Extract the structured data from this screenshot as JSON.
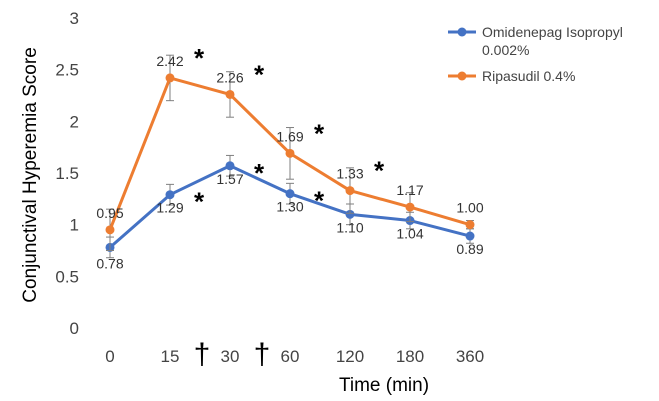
{
  "chart_data": {
    "type": "line",
    "title": "",
    "xlabel": "Time (min)",
    "ylabel": "Conjunctival Hyperemia Score",
    "categories": [
      "0",
      "15",
      "30",
      "60",
      "120",
      "180",
      "360"
    ],
    "ylim": [
      0,
      3
    ],
    "yticks": [
      "0",
      "0.5",
      "1",
      "1.5",
      "2",
      "2.5",
      "3"
    ],
    "grid": false,
    "legend_position": "top-right",
    "series": [
      {
        "name": "Omidenepag Isopropyl 0.002%",
        "legend_lines": [
          "Omidenepag Isopropyl",
          "0.002%"
        ],
        "color": "#4472C4",
        "values": [
          0.78,
          1.29,
          1.57,
          1.3,
          1.1,
          1.04,
          0.89
        ],
        "labels": [
          "0.78",
          "1.29",
          "1.57",
          "1.30",
          "1.10",
          "1.04",
          "0.89"
        ],
        "errors": [
          0.1,
          0.1,
          0.1,
          0.1,
          0.1,
          0.08,
          0.07
        ]
      },
      {
        "name": "Ripasudil 0.4%",
        "legend_lines": [
          "Ripasudil 0.4%"
        ],
        "color": "#ED7D31",
        "values": [
          0.95,
          2.42,
          2.26,
          1.69,
          1.33,
          1.17,
          1.0
        ],
        "labels": [
          "0.95",
          "2.42",
          "2.26",
          "1.69",
          "1.33",
          "1.17",
          "1.00"
        ],
        "errors": [
          0.2,
          0.22,
          0.22,
          0.25,
          0.22,
          0.14,
          0.04
        ]
      }
    ],
    "annotations": {
      "significance_symbol": "*",
      "significance_points": [
        {
          "series": 1,
          "index": 1
        },
        {
          "series": 1,
          "index": 2
        },
        {
          "series": 1,
          "index": 3
        },
        {
          "series": 1,
          "index": 4
        },
        {
          "series": 0,
          "index": 1
        },
        {
          "series": 0,
          "index": 2
        },
        {
          "series": 0,
          "index": 3
        }
      ],
      "dagger_symbol": "†",
      "dagger_after_categories": [
        "15",
        "30"
      ]
    }
  }
}
